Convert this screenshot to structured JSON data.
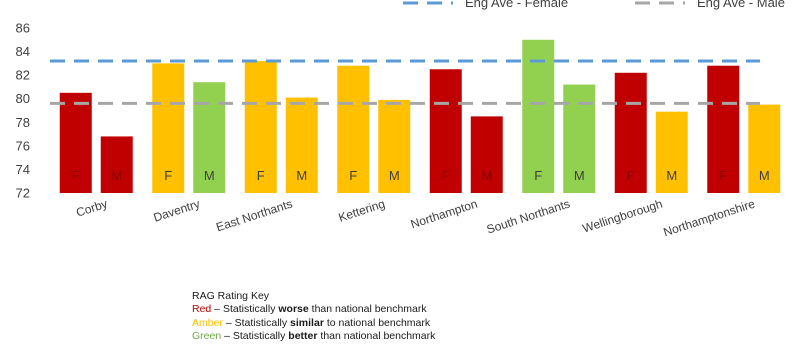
{
  "chart_data": {
    "type": "bar",
    "title": "",
    "xlabel": "",
    "ylabel": "",
    "ylim": [
      72,
      86
    ],
    "yticks": [
      72,
      74,
      76,
      78,
      80,
      82,
      84,
      86
    ],
    "grid": false,
    "categories": [
      "Corby",
      "Daventry",
      "East Northants",
      "Kettering",
      "Northampton",
      "South Northants",
      "Wellingborough",
      "Northamptonshire"
    ],
    "bar_labels": [
      "F",
      "M"
    ],
    "series": [
      {
        "name": "F",
        "values": [
          80.5,
          83.0,
          83.2,
          82.8,
          82.5,
          85.0,
          82.2,
          82.8
        ],
        "rag": [
          "red",
          "amber",
          "amber",
          "amber",
          "red",
          "green",
          "red",
          "red"
        ]
      },
      {
        "name": "M",
        "values": [
          76.8,
          81.4,
          80.1,
          79.9,
          78.5,
          81.2,
          78.9,
          79.5
        ],
        "rag": [
          "red",
          "green",
          "amber",
          "amber",
          "red",
          "green",
          "amber",
          "amber"
        ]
      }
    ],
    "reference_lines": [
      {
        "name": "Eng Ave - Female",
        "value": 83.2,
        "color": "#5b9bd5"
      },
      {
        "name": "Eng Ave - Male",
        "value": 79.6,
        "color": "#a6a6a6"
      }
    ],
    "legend_placement": "top-right",
    "rag_colors": {
      "red": "#c00000",
      "amber": "#ffc000",
      "green": "#92d050"
    }
  },
  "rag_key": {
    "title": "RAG Rating Key",
    "rows": [
      {
        "word": "Red",
        "color": "#c00000",
        "pre": " – Statistically ",
        "bold": "worse",
        "post": " than national benchmark"
      },
      {
        "word": "Amber",
        "color": "#ffc000",
        "pre": " – Statistically ",
        "bold": "similar",
        "post": " to national benchmark"
      },
      {
        "word": "Green",
        "color": "#70ad47",
        "pre": " – Statistically ",
        "bold": "better",
        "post": " than national benchmark"
      }
    ]
  }
}
